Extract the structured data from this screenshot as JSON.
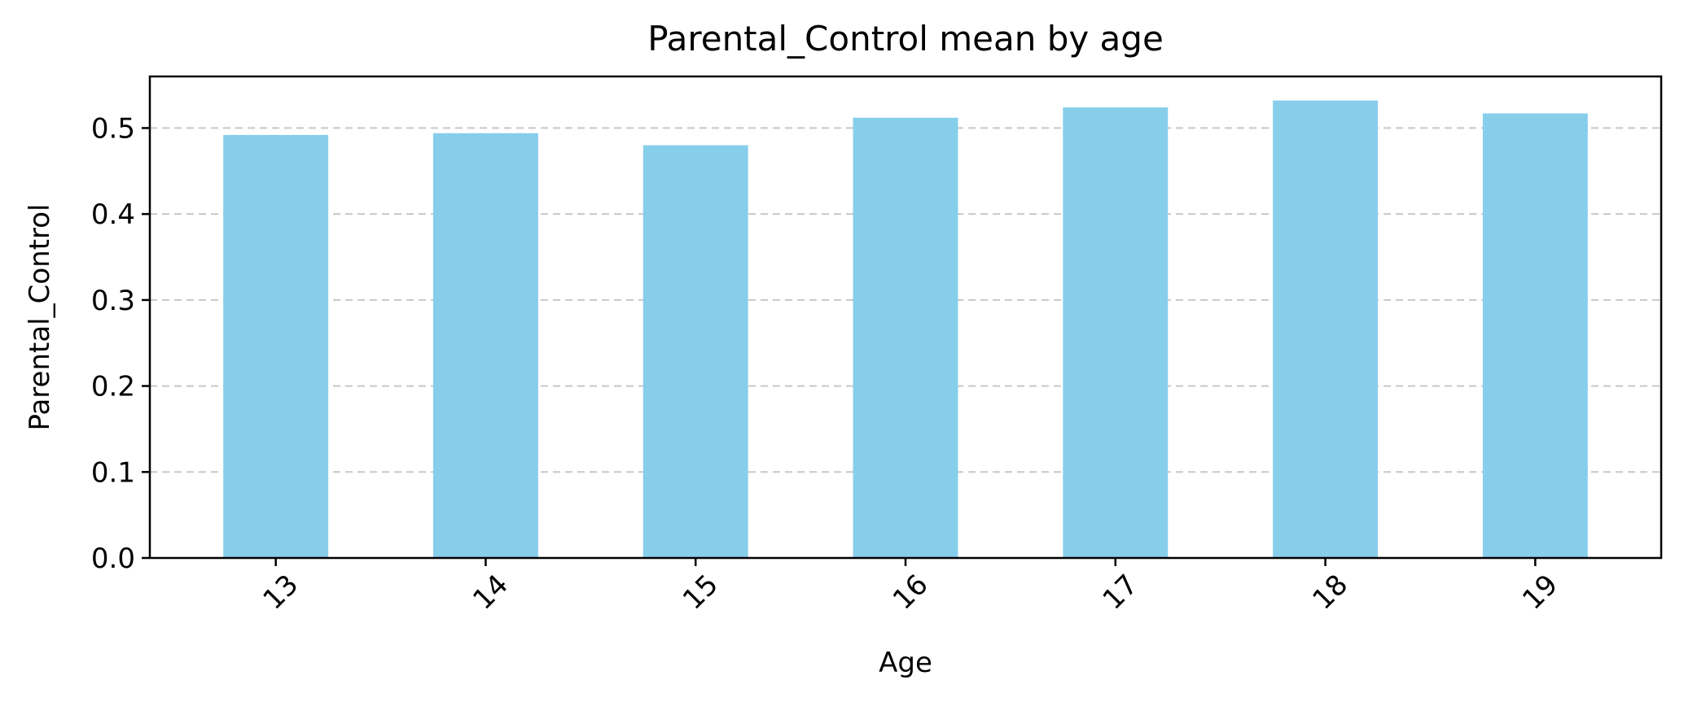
{
  "chart_data": {
    "type": "bar",
    "title": "Parental_Control mean by age",
    "xlabel": "Age",
    "ylabel": "Parental_Control",
    "categories": [
      "13",
      "14",
      "15",
      "16",
      "17",
      "18",
      "19"
    ],
    "values": [
      0.492,
      0.494,
      0.48,
      0.512,
      0.524,
      0.532,
      0.517
    ],
    "ylim": [
      0,
      0.56
    ],
    "yticks": [
      "0.0",
      "0.1",
      "0.2",
      "0.3",
      "0.4",
      "0.5"
    ],
    "grid": "y-dashed",
    "legend": "none",
    "x_tick_rotation": "45",
    "colors": {
      "bar": "#87CEEB",
      "grid": "#c8c8c8",
      "axis": "#000000"
    }
  }
}
